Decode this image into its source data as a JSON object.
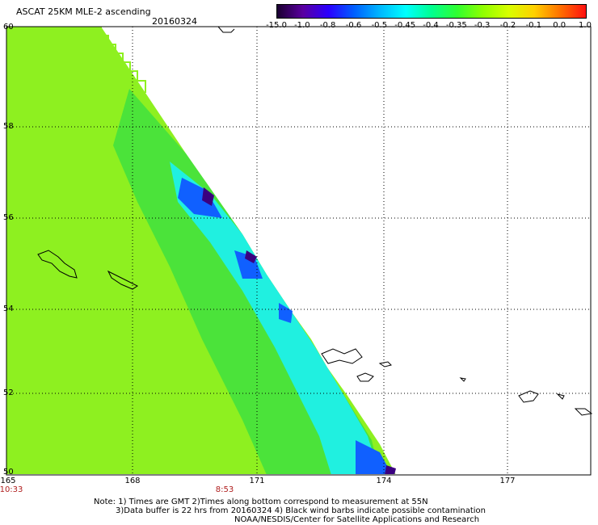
{
  "header": {
    "title": "ASCAT 25KM MLE-2 ascending",
    "date": "20160324"
  },
  "colorbar": {
    "ticks": [
      "-15.0",
      "-1.0",
      "-0.8",
      "-0.6",
      "-0.5",
      "-0.45",
      "-0.4",
      "-0.35",
      "-0.3",
      "-0.2",
      "-0.1",
      "0.0",
      "1.0"
    ],
    "colors": [
      "#1a0030",
      "#5a00a0",
      "#2a00ff",
      "#0060ff",
      "#00b8ff",
      "#00ffff",
      "#00ff90",
      "#30ff30",
      "#90ff00",
      "#d8ff00",
      "#ffd000",
      "#ff7000",
      "#ff1010"
    ]
  },
  "axes": {
    "lat_ticks": [
      "60",
      "58",
      "56",
      "54",
      "52",
      "50"
    ],
    "lon_ticks": [
      "165",
      "168",
      "171",
      "174",
      "177"
    ],
    "time_ticks": [
      "10:33",
      "8:53"
    ],
    "lat_range": [
      50,
      60
    ],
    "lon_range": [
      165,
      179.5
    ]
  },
  "notes": {
    "line1": "Note: 1) Times are GMT 2)Times along bottom correspond to measurement at 55N",
    "line2": "3)Data buffer is 22 hrs from 20160324 4) Black wind barbs indicate possible contamination",
    "line3": "NOAA/NESDIS/Center for Satellite Applications and Research"
  }
}
